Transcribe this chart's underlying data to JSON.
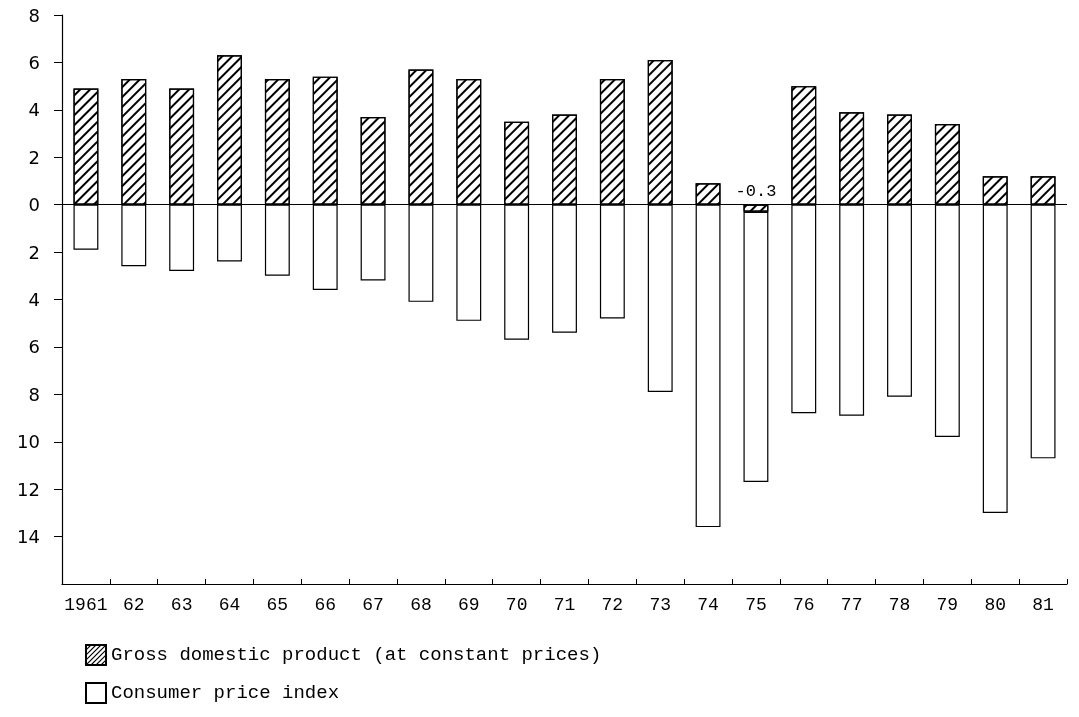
{
  "chart_data": {
    "type": "bar",
    "categories": [
      "1961",
      "62",
      "63",
      "64",
      "65",
      "66",
      "67",
      "68",
      "69",
      "70",
      "71",
      "72",
      "73",
      "74",
      "75",
      "76",
      "77",
      "78",
      "79",
      "80",
      "81"
    ],
    "series": [
      {
        "name": "Gross domestic product (at constant prices)",
        "color": "#ffffff",
        "values": [
          4.9,
          5.3,
          4.9,
          6.3,
          5.3,
          5.4,
          3.7,
          5.7,
          5.3,
          3.5,
          3.8,
          5.3,
          6.1,
          0.9,
          -0.3,
          5.0,
          3.9,
          3.8,
          3.4,
          1.2,
          1.2
        ],
        "value_labels": [
          null,
          null,
          null,
          null,
          null,
          null,
          null,
          null,
          null,
          null,
          null,
          null,
          null,
          null,
          "-0.3",
          null,
          null,
          null,
          null,
          null,
          null
        ]
      },
      {
        "name": "Consumer price index",
        "color": "#ffffff",
        "values": [
          -1.9,
          -2.6,
          -2.8,
          -2.4,
          -3.0,
          -3.6,
          -3.2,
          -4.1,
          -4.9,
          -5.7,
          -5.4,
          -4.8,
          -7.9,
          -13.6,
          -11.4,
          -8.8,
          -8.9,
          -8.1,
          -9.8,
          -13.0,
          -10.7
        ]
      }
    ],
    "ylim": [
      -16,
      8
    ],
    "yticks": [
      8,
      6,
      4,
      2,
      0,
      {
        "value": -2,
        "label": "2"
      },
      {
        "value": -4,
        "label": "4"
      },
      {
        "value": -6,
        "label": "6"
      },
      {
        "value": -8,
        "label": "8"
      },
      {
        "value": -10,
        "label": "10"
      },
      {
        "value": -12,
        "label": "12"
      },
      {
        "value": -14,
        "label": "14"
      }
    ],
    "ref_lines": [
      {
        "axis": "y",
        "value": 0,
        "label": null,
        "color": "#000000"
      }
    ],
    "stacked": true,
    "grid": false,
    "legend": "bottom left"
  }
}
